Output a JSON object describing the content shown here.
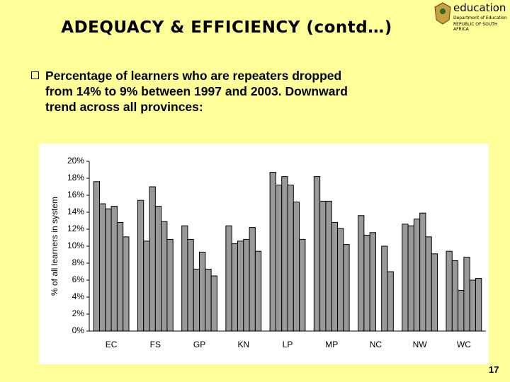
{
  "header": {
    "title": "ADEQUACY & EFFICIENCY (contd…)",
    "logo": [
      "education",
      "Department of Education",
      "REPUBLIC OF SOUTH AFRICA"
    ]
  },
  "bullet": [
    "Percentage of learners who are repeaters dropped",
    "from 14% to 9% between 1997 and 2003. Downward",
    "trend across all provinces:"
  ],
  "page_number": "17",
  "chart_data": {
    "type": "bar",
    "y_label": "% of all learners in system",
    "categories": [
      "EC",
      "FS",
      "GP",
      "KN",
      "LP",
      "MP",
      "NC",
      "NW",
      "WC"
    ],
    "series": [
      {
        "color": "#999999",
        "values": [
          17.6,
          15.4,
          12.4,
          12.4,
          18.7,
          18.2,
          13.6,
          12.6,
          9.4
        ]
      },
      {
        "color": "#999999",
        "values": [
          15.0,
          10.6,
          10.8,
          10.3,
          17.2,
          15.3,
          11.3,
          12.4,
          8.3
        ]
      },
      {
        "color": "#999999",
        "values": [
          14.4,
          17.0,
          7.3,
          10.6,
          18.2,
          15.3,
          11.6,
          13.2,
          4.8
        ]
      },
      {
        "color": "#999999",
        "values": [
          14.7,
          14.7,
          9.3,
          10.8,
          17.2,
          12.8,
          null,
          13.9,
          8.7
        ]
      },
      {
        "color": "#999999",
        "values": [
          12.8,
          12.9,
          7.3,
          12.2,
          15.2,
          12.1,
          10.0,
          11.1,
          6.0
        ]
      },
      {
        "color": "#999999",
        "values": [
          11.1,
          10.8,
          6.5,
          9.4,
          10.8,
          10.2,
          7.0,
          9.1,
          6.2
        ]
      }
    ],
    "ylim": [
      0,
      20
    ],
    "yticks": [
      {
        "value": 0,
        "label": "0%"
      },
      {
        "value": 2,
        "label": "2%"
      },
      {
        "value": 4,
        "label": "4%"
      },
      {
        "value": 6,
        "label": "6%"
      },
      {
        "value": 8,
        "label": "8%"
      },
      {
        "value": 10,
        "label": "10%"
      },
      {
        "value": 12,
        "label": "12%"
      },
      {
        "value": 14,
        "label": "14%"
      },
      {
        "value": 16,
        "label": "16%"
      },
      {
        "value": 18,
        "label": "18%"
      },
      {
        "value": 20,
        "label": "20%"
      }
    ],
    "grid": false
  }
}
